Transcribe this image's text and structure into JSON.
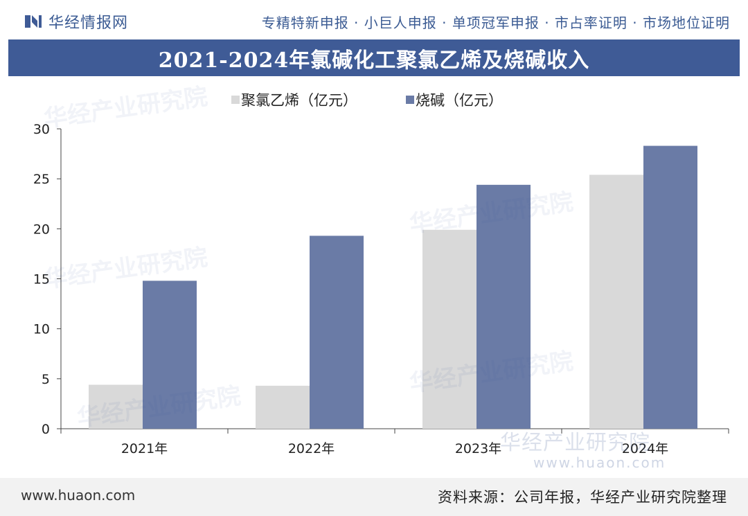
{
  "header": {
    "brand": "华经情报网",
    "tagline": "专精特新申报 · 小巨人申报 · 单项冠军申报 · 市占率证明 · 市场地位证明"
  },
  "watermark": {
    "brand": "华经产业研究院",
    "url": "www.huaon.com"
  },
  "footer": {
    "url": "www.huaon.com",
    "source": "资料来源：公司年报，华经产业研究院整理"
  },
  "colors": {
    "title_bg": "#3f5b96",
    "pvc": "#d9d9d9",
    "caustic_soda": "#6a7ba6"
  },
  "chart_data": {
    "type": "bar",
    "title": "2021-2024年氯碱化工聚氯乙烯及烧碱收入",
    "categories": [
      "2021年",
      "2022年",
      "2023年",
      "2024年"
    ],
    "series": [
      {
        "name": "聚氯乙烯（亿元）",
        "values": [
          4.4,
          4.3,
          19.9,
          25.4
        ]
      },
      {
        "name": "烧碱（亿元）",
        "values": [
          14.8,
          19.3,
          24.4,
          28.3
        ]
      }
    ],
    "yticks": [
      "0",
      "5",
      "10",
      "15",
      "20",
      "25",
      "30"
    ],
    "ylim": [
      0,
      30
    ],
    "xlabel": "",
    "ylabel": "",
    "legend_position": "top-left",
    "grid": false
  }
}
